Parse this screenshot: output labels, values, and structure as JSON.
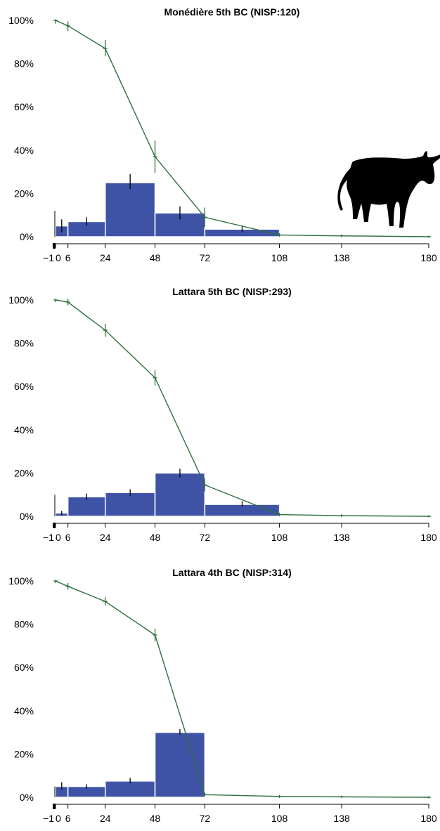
{
  "colors": {
    "bar": "#3f53a6",
    "survivorship_line": "#2e6e3e",
    "error_bar": "#000000"
  },
  "icons": {
    "cattle": "cattle-silhouette-icon"
  },
  "chart_data": [
    {
      "type": "bar",
      "title": "Monédière 5th BC (NISP:120)",
      "x_ticks": [
        -1,
        0,
        6,
        24,
        48,
        72,
        108,
        138,
        180
      ],
      "x_tick_labels": [
        "−1",
        "0",
        "6",
        "24",
        "48",
        "72",
        "108",
        "138",
        "180"
      ],
      "y_ticks": [
        "0%",
        "20%",
        "40%",
        "60%",
        "80%",
        "100%"
      ],
      "xlim": [
        -1,
        180
      ],
      "ylim": [
        0,
        100
      ],
      "bars": [
        {
          "x0": 0,
          "x1": 6,
          "value": 5,
          "err_low": 2,
          "err_high": 8
        },
        {
          "x0": 6,
          "x1": 24,
          "value": 7,
          "err_low": 5,
          "err_high": 9
        },
        {
          "x0": 24,
          "x1": 48,
          "value": 25,
          "err_low": 22,
          "err_high": 29
        },
        {
          "x0": 48,
          "x1": 72,
          "value": 11,
          "err_low": 8,
          "err_high": 14
        },
        {
          "x0": 72,
          "x1": 108,
          "value": 3.5,
          "err_low": 2,
          "err_high": 5
        }
      ],
      "survivorship": {
        "x": [
          0,
          6,
          24,
          48,
          72,
          108,
          138,
          180
        ],
        "y": [
          100,
          97.5,
          87,
          37,
          9,
          0.8,
          0.4,
          0
        ],
        "err_low": [
          99,
          95.5,
          84,
          30,
          5,
          0.5,
          0.2,
          0
        ],
        "err_high": [
          100,
          99,
          90.5,
          44,
          13,
          1.2,
          0.6,
          0
        ]
      },
      "left_bracket": {
        "y_low": 0,
        "y_high": 12
      }
    },
    {
      "type": "bar",
      "title": "Lattara 5th BC (NISP:293)",
      "x_ticks": [
        -1,
        0,
        6,
        24,
        48,
        72,
        108,
        138,
        180
      ],
      "x_tick_labels": [
        "−1",
        "0",
        "6",
        "24",
        "48",
        "72",
        "108",
        "138",
        "180"
      ],
      "y_ticks": [
        "0%",
        "20%",
        "40%",
        "60%",
        "80%",
        "100%"
      ],
      "xlim": [
        -1,
        180
      ],
      "ylim": [
        0,
        100
      ],
      "bars": [
        {
          "x0": 0,
          "x1": 6,
          "value": 1.5,
          "err_low": 0.5,
          "err_high": 2.5
        },
        {
          "x0": 6,
          "x1": 24,
          "value": 9,
          "err_low": 7.5,
          "err_high": 10.5
        },
        {
          "x0": 24,
          "x1": 48,
          "value": 11,
          "err_low": 9.5,
          "err_high": 12.5
        },
        {
          "x0": 48,
          "x1": 72,
          "value": 20,
          "err_low": 18,
          "err_high": 22
        },
        {
          "x0": 72,
          "x1": 108,
          "value": 5.5,
          "err_low": 4.5,
          "err_high": 7
        }
      ],
      "survivorship": {
        "x": [
          0,
          6,
          24,
          48,
          72,
          108,
          138,
          180
        ],
        "y": [
          100,
          99,
          86,
          64,
          14.5,
          0.8,
          0.3,
          0
        ],
        "err_low": [
          99.5,
          98,
          83.5,
          61,
          12,
          0.5,
          0.1,
          0
        ],
        "err_high": [
          100,
          100,
          88.5,
          67,
          17,
          1.2,
          0.5,
          0
        ]
      },
      "left_bracket": {
        "y_low": 0,
        "y_high": 10
      }
    },
    {
      "type": "bar",
      "title": "Lattara 4th BC (NISP:314)",
      "x_ticks": [
        -1,
        0,
        6,
        24,
        48,
        72,
        108,
        138,
        180
      ],
      "x_tick_labels": [
        "−1",
        "0",
        "6",
        "24",
        "48",
        "72",
        "108",
        "138",
        "180"
      ],
      "y_ticks": [
        "0%",
        "20%",
        "40%",
        "60%",
        "80%",
        "100%"
      ],
      "xlim": [
        -1,
        180
      ],
      "ylim": [
        0,
        100
      ],
      "bars": [
        {
          "x0": 0,
          "x1": 6,
          "value": 5,
          "err_low": 3.5,
          "err_high": 7
        },
        {
          "x0": 6,
          "x1": 24,
          "value": 5,
          "err_low": 4,
          "err_high": 6
        },
        {
          "x0": 24,
          "x1": 48,
          "value": 7.5,
          "err_low": 6.5,
          "err_high": 9
        },
        {
          "x0": 48,
          "x1": 72,
          "value": 30,
          "err_low": 29,
          "err_high": 31.5
        },
        {
          "x0": 72,
          "x1": 108,
          "value": 0,
          "err_low": 0,
          "err_high": 0
        }
      ],
      "survivorship": {
        "x": [
          0,
          6,
          24,
          48,
          72,
          108,
          138,
          180
        ],
        "y": [
          100,
          97.5,
          90.5,
          75,
          1.2,
          0.4,
          0.2,
          0
        ],
        "err_low": [
          99.5,
          96.5,
          89,
          72.5,
          0.8,
          0.2,
          0.1,
          0
        ],
        "err_high": [
          100,
          98.5,
          92,
          77.5,
          1.6,
          0.6,
          0.3,
          0
        ]
      },
      "left_bracket": {
        "y_low": 0,
        "y_high": 5
      }
    }
  ]
}
